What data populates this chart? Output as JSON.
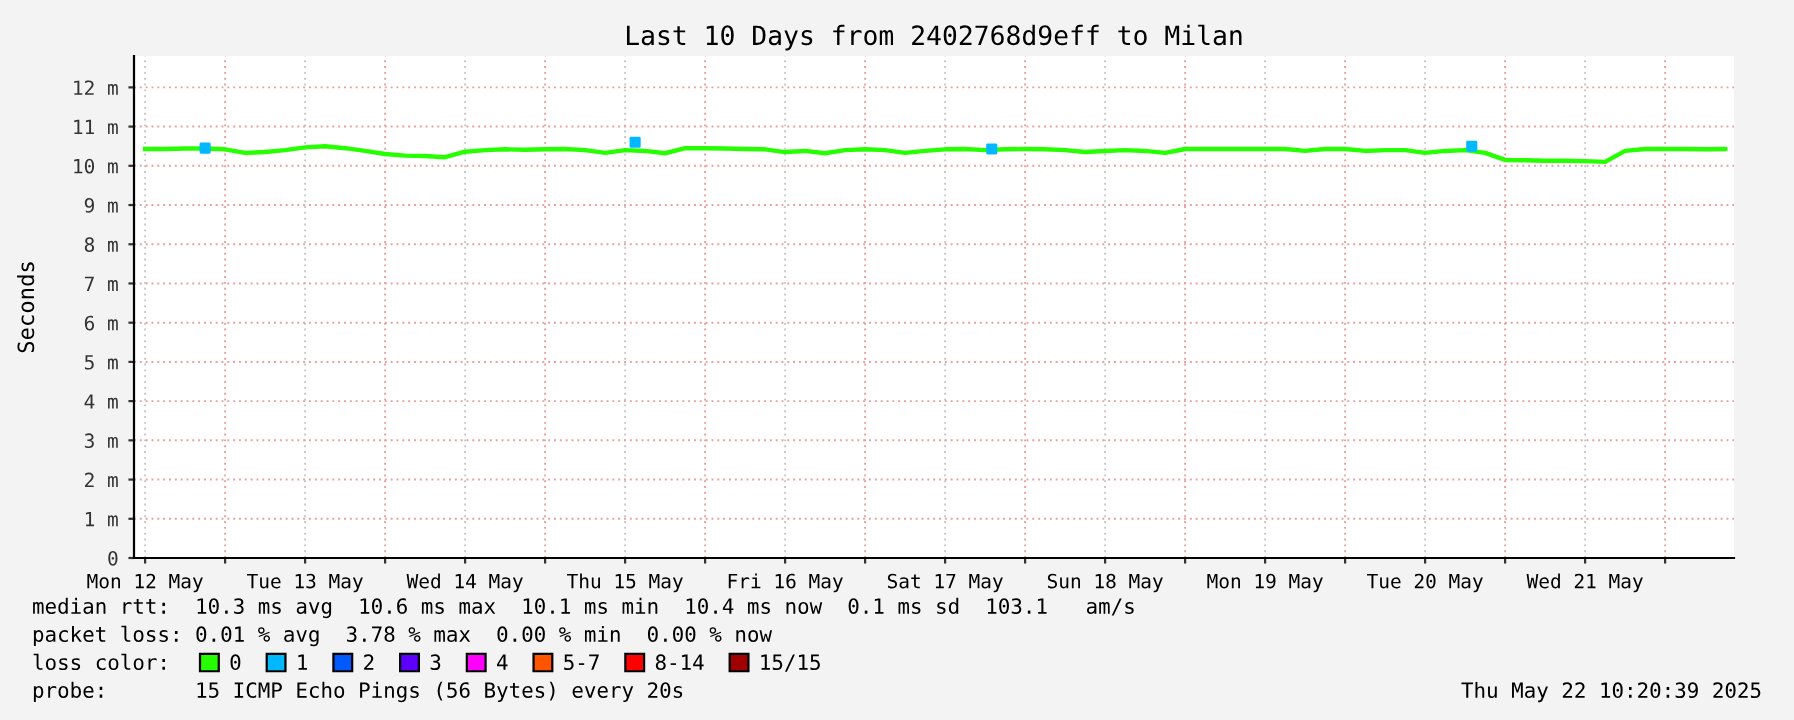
{
  "chart_data": {
    "type": "line",
    "title": "Last 10 Days from 2402768d9eff to Milan",
    "ylabel": "Seconds",
    "x": [
      "2025-05-12T12:00",
      "2025-05-12T15:00",
      "2025-05-12T18:00",
      "2025-05-12T21:00",
      "2025-05-13T00:00",
      "2025-05-13T03:00",
      "2025-05-13T06:00",
      "2025-05-13T09:00",
      "2025-05-13T12:00",
      "2025-05-13T15:00",
      "2025-05-13T18:00",
      "2025-05-13T21:00",
      "2025-05-14T00:00",
      "2025-05-14T03:00",
      "2025-05-14T06:00",
      "2025-05-14T09:00",
      "2025-05-14T12:00",
      "2025-05-14T15:00",
      "2025-05-14T18:00",
      "2025-05-14T21:00",
      "2025-05-15T00:00",
      "2025-05-15T03:00",
      "2025-05-15T06:00",
      "2025-05-15T09:00",
      "2025-05-15T12:00",
      "2025-05-15T15:00",
      "2025-05-15T18:00",
      "2025-05-15T21:00",
      "2025-05-16T00:00",
      "2025-05-16T03:00",
      "2025-05-16T06:00",
      "2025-05-16T09:00",
      "2025-05-16T12:00",
      "2025-05-16T15:00",
      "2025-05-16T18:00",
      "2025-05-16T21:00",
      "2025-05-17T00:00",
      "2025-05-17T03:00",
      "2025-05-17T06:00",
      "2025-05-17T09:00",
      "2025-05-17T12:00",
      "2025-05-17T15:00",
      "2025-05-17T18:00",
      "2025-05-17T21:00",
      "2025-05-18T00:00",
      "2025-05-18T03:00",
      "2025-05-18T06:00",
      "2025-05-18T09:00",
      "2025-05-18T12:00",
      "2025-05-18T15:00",
      "2025-05-18T18:00",
      "2025-05-18T21:00",
      "2025-05-19T00:00",
      "2025-05-19T03:00",
      "2025-05-19T06:00",
      "2025-05-19T09:00",
      "2025-05-19T12:00",
      "2025-05-19T15:00",
      "2025-05-19T18:00",
      "2025-05-19T21:00",
      "2025-05-20T00:00",
      "2025-05-20T03:00",
      "2025-05-20T06:00",
      "2025-05-20T09:00",
      "2025-05-20T12:00",
      "2025-05-20T15:00",
      "2025-05-20T18:00",
      "2025-05-20T21:00",
      "2025-05-21T00:00",
      "2025-05-21T03:00",
      "2025-05-21T06:00",
      "2025-05-21T09:00",
      "2025-05-21T12:00",
      "2025-05-21T15:00",
      "2025-05-21T18:00",
      "2025-05-21T21:00",
      "2025-05-22T00:00",
      "2025-05-22T03:00",
      "2025-05-22T06:00",
      "2025-05-22T09:00"
    ],
    "series": [
      {
        "name": "0",
        "color": "#26ff00",
        "values": [
          10.43,
          10.43,
          10.44,
          10.44,
          10.42,
          10.33,
          10.35,
          10.4,
          10.47,
          10.5,
          10.45,
          10.38,
          10.3,
          10.26,
          10.25,
          10.22,
          10.36,
          10.4,
          10.42,
          10.41,
          10.42,
          10.43,
          10.4,
          10.33,
          10.4,
          10.38,
          10.32,
          10.45,
          10.45,
          10.44,
          10.43,
          10.42,
          10.35,
          10.38,
          10.32,
          10.4,
          10.42,
          10.4,
          10.33,
          10.38,
          10.42,
          10.43,
          10.4,
          10.42,
          10.43,
          10.42,
          10.4,
          10.35,
          10.38,
          10.4,
          10.38,
          10.33,
          10.43,
          10.43,
          10.43,
          10.43,
          10.43,
          10.43,
          10.38,
          10.43,
          10.43,
          10.38,
          10.4,
          10.4,
          10.33,
          10.38,
          10.4,
          10.33,
          10.15,
          10.14,
          10.13,
          10.13,
          10.12,
          10.1,
          10.38,
          10.43,
          10.43,
          10.43,
          10.42,
          10.43
        ]
      },
      {
        "name": "1",
        "color": "#00b8ff",
        "type": "scatter",
        "marker": "square",
        "x": [
          "2025-05-12T21:00",
          "2025-05-15T13:30",
          "2025-05-17T19:00",
          "2025-05-20T19:00"
        ],
        "values": [
          10.45,
          10.6,
          10.43,
          10.5
        ]
      },
      {
        "name": "2",
        "color": "#0059ff",
        "values": [
          null,
          null,
          null,
          null,
          null,
          null,
          null,
          null,
          null,
          null,
          null,
          null,
          null,
          null,
          null,
          null,
          null,
          null,
          null,
          null,
          null,
          null,
          null,
          null,
          null,
          null,
          null,
          null,
          null,
          null,
          null,
          null,
          null,
          null,
          null,
          null,
          null,
          null,
          null,
          null,
          null,
          null,
          null,
          null,
          null,
          null,
          null,
          null,
          null,
          null,
          null,
          null,
          null,
          null,
          null,
          null,
          null,
          null,
          null,
          null,
          null,
          null,
          null,
          null,
          null,
          null,
          null,
          null,
          null,
          null,
          null,
          null,
          null,
          null,
          null,
          null,
          null,
          null,
          null,
          null
        ]
      },
      {
        "name": "3",
        "color": "#5e00ff",
        "values": [
          null,
          null,
          null,
          null,
          null,
          null,
          null,
          null,
          null,
          null,
          null,
          null,
          null,
          null,
          null,
          null,
          null,
          null,
          null,
          null,
          null,
          null,
          null,
          null,
          null,
          null,
          null,
          null,
          null,
          null,
          null,
          null,
          null,
          null,
          null,
          null,
          null,
          null,
          null,
          null,
          null,
          null,
          null,
          null,
          null,
          null,
          null,
          null,
          null,
          null,
          null,
          null,
          null,
          null,
          null,
          null,
          null,
          null,
          null,
          null,
          null,
          null,
          null,
          null,
          null,
          null,
          null,
          null,
          null,
          null,
          null,
          null,
          null,
          null,
          null,
          null,
          null,
          null,
          null,
          null
        ]
      },
      {
        "name": "4",
        "color": "#ff00fe",
        "values": [
          null,
          null,
          null,
          null,
          null,
          null,
          null,
          null,
          null,
          null,
          null,
          null,
          null,
          null,
          null,
          null,
          null,
          null,
          null,
          null,
          null,
          null,
          null,
          null,
          null,
          null,
          null,
          null,
          null,
          null,
          null,
          null,
          null,
          null,
          null,
          null,
          null,
          null,
          null,
          null,
          null,
          null,
          null,
          null,
          null,
          null,
          null,
          null,
          null,
          null,
          null,
          null,
          null,
          null,
          null,
          null,
          null,
          null,
          null,
          null,
          null,
          null,
          null,
          null,
          null,
          null,
          null,
          null,
          null,
          null,
          null,
          null,
          null,
          null,
          null,
          null,
          null,
          null,
          null,
          null
        ]
      },
      {
        "name": "5-7",
        "color": "#ff5500",
        "values": [
          null,
          null,
          null,
          null,
          null,
          null,
          null,
          null,
          null,
          null,
          null,
          null,
          null,
          null,
          null,
          null,
          null,
          null,
          null,
          null,
          null,
          null,
          null,
          null,
          null,
          null,
          null,
          null,
          null,
          null,
          null,
          null,
          null,
          null,
          null,
          null,
          null,
          null,
          null,
          null,
          null,
          null,
          null,
          null,
          null,
          null,
          null,
          null,
          null,
          null,
          null,
          null,
          null,
          null,
          null,
          null,
          null,
          null,
          null,
          null,
          null,
          null,
          null,
          null,
          null,
          null,
          null,
          null,
          null,
          null,
          null,
          null,
          null,
          null,
          null,
          null,
          null,
          null,
          null,
          null
        ]
      },
      {
        "name": "8-14",
        "color": "#ff0000",
        "values": [
          null,
          null,
          null,
          null,
          null,
          null,
          null,
          null,
          null,
          null,
          null,
          null,
          null,
          null,
          null,
          null,
          null,
          null,
          null,
          null,
          null,
          null,
          null,
          null,
          null,
          null,
          null,
          null,
          null,
          null,
          null,
          null,
          null,
          null,
          null,
          null,
          null,
          null,
          null,
          null,
          null,
          null,
          null,
          null,
          null,
          null,
          null,
          null,
          null,
          null,
          null,
          null,
          null,
          null,
          null,
          null,
          null,
          null,
          null,
          null,
          null,
          null,
          null,
          null,
          null,
          null,
          null,
          null,
          null,
          null,
          null,
          null,
          null,
          null,
          null,
          null,
          null,
          null,
          null,
          null
        ]
      },
      {
        "name": "15/15",
        "color": "#a10000",
        "values": [
          null,
          null,
          null,
          null,
          null,
          null,
          null,
          null,
          null,
          null,
          null,
          null,
          null,
          null,
          null,
          null,
          null,
          null,
          null,
          null,
          null,
          null,
          null,
          null,
          null,
          null,
          null,
          null,
          null,
          null,
          null,
          null,
          null,
          null,
          null,
          null,
          null,
          null,
          null,
          null,
          null,
          null,
          null,
          null,
          null,
          null,
          null,
          null,
          null,
          null,
          null,
          null,
          null,
          null,
          null,
          null,
          null,
          null,
          null,
          null,
          null,
          null,
          null,
          null,
          null,
          null,
          null,
          null,
          null,
          null,
          null,
          null,
          null,
          null,
          null,
          null,
          null,
          null,
          null,
          null
        ]
      }
    ],
    "legend_title": "loss color:",
    "legend": "bottom",
    "grid": true,
    "marker": "none",
    "line_style": "solid",
    "xlim": [
      "2025-05-12T10:20",
      "2025-05-22T10:20"
    ],
    "xticks": [
      {
        "value": "2025-05-12T12:00",
        "label": "Mon 12 May"
      },
      {
        "value": "2025-05-13T00:00",
        "label": null
      },
      {
        "value": "2025-05-13T12:00",
        "label": "Tue 13 May"
      },
      {
        "value": "2025-05-14T00:00",
        "label": null
      },
      {
        "value": "2025-05-14T12:00",
        "label": "Wed 14 May"
      },
      {
        "value": "2025-05-15T00:00",
        "label": null
      },
      {
        "value": "2025-05-15T12:00",
        "label": "Thu 15 May"
      },
      {
        "value": "2025-05-16T00:00",
        "label": null
      },
      {
        "value": "2025-05-16T12:00",
        "label": "Fri 16 May"
      },
      {
        "value": "2025-05-17T00:00",
        "label": null
      },
      {
        "value": "2025-05-17T12:00",
        "label": "Sat 17 May"
      },
      {
        "value": "2025-05-18T00:00",
        "label": null
      },
      {
        "value": "2025-05-18T12:00",
        "label": "Sun 18 May"
      },
      {
        "value": "2025-05-19T00:00",
        "label": null
      },
      {
        "value": "2025-05-19T12:00",
        "label": "Mon 19 May"
      },
      {
        "value": "2025-05-20T00:00",
        "label": null
      },
      {
        "value": "2025-05-20T12:00",
        "label": "Tue 20 May"
      },
      {
        "value": "2025-05-21T00:00",
        "label": null
      },
      {
        "value": "2025-05-21T12:00",
        "label": "Wed 21 May"
      },
      {
        "value": "2025-05-22T00:00",
        "label": null
      }
    ],
    "ylim": [
      0,
      12.8
    ],
    "yticks": [
      0,
      {
        "value": 1,
        "label": "1 m"
      },
      {
        "value": 2,
        "label": "2 m"
      },
      {
        "value": 3,
        "label": "3 m"
      },
      {
        "value": 4,
        "label": "4 m"
      },
      {
        "value": 5,
        "label": "5 m"
      },
      {
        "value": 6,
        "label": "6 m"
      },
      {
        "value": 7,
        "label": "7 m"
      },
      {
        "value": 8,
        "label": "8 m"
      },
      {
        "value": 9,
        "label": "9 m"
      },
      {
        "value": 10,
        "label": "10 m"
      },
      {
        "value": 11,
        "label": "11 m"
      },
      {
        "value": 12,
        "label": "12 m"
      }
    ],
    "annotations": [
      "median rtt:  10.3 ms avg  10.6 ms max  10.1 ms min  10.4 ms now  0.1 ms sd  103.1   am/s",
      "packet loss: 0.01 % avg  3.78 % max  0.00 % min  0.00 % now",
      "probe:       15 ICMP Echo Pings (56 Bytes) every 20s",
      "Thu May 22 10:20:39 2025"
    ]
  }
}
